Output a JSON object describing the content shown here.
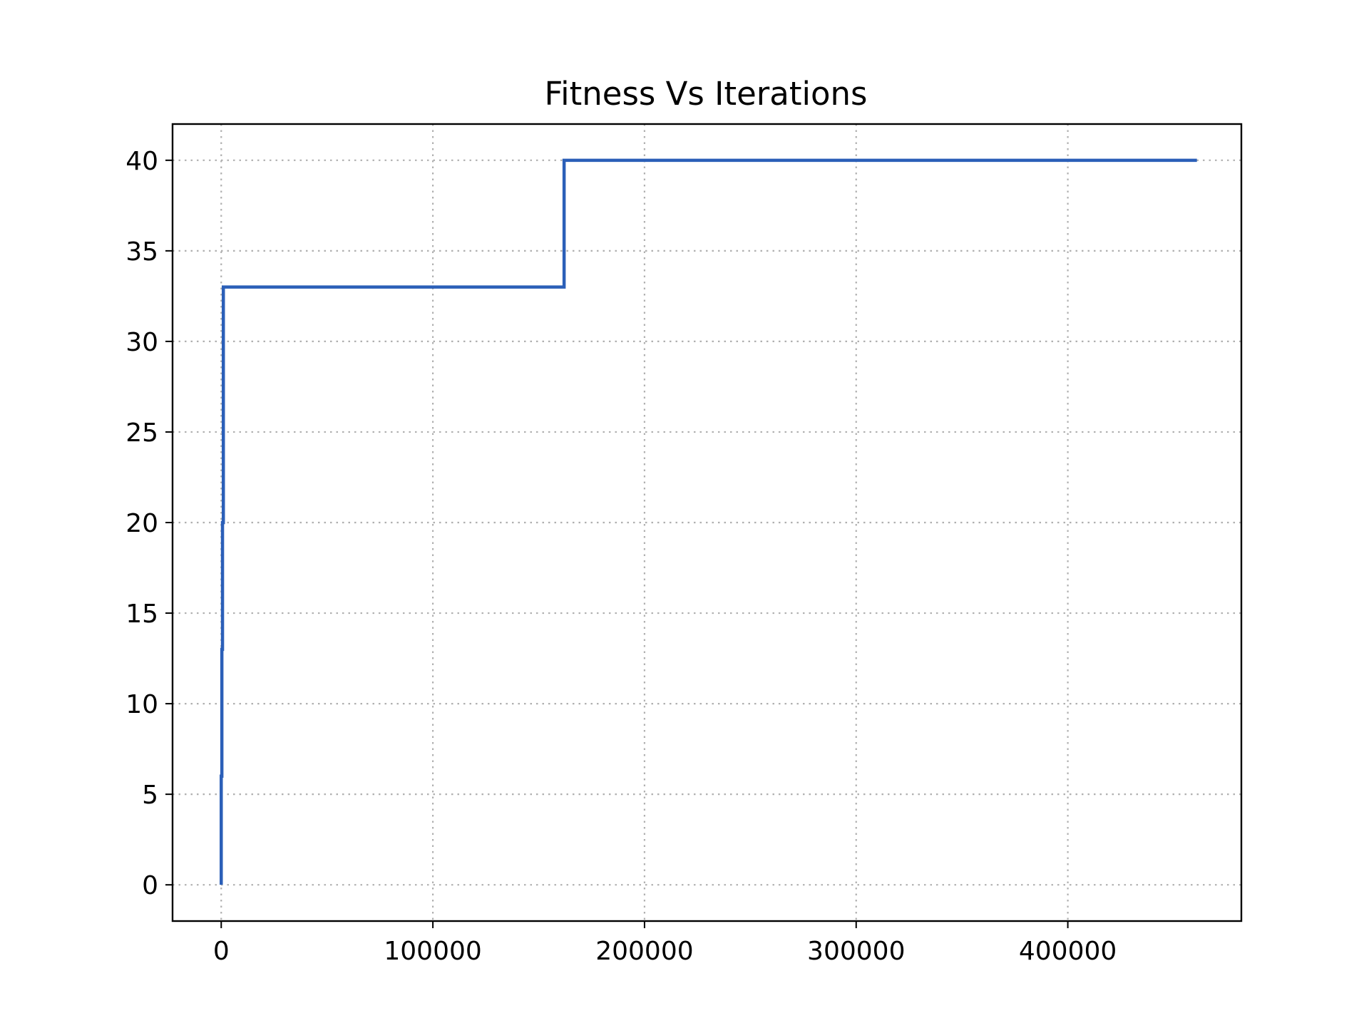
{
  "chart_data": {
    "type": "line",
    "title": "Fitness Vs Iterations",
    "xlabel": "",
    "ylabel": "",
    "xlim": [
      -23000,
      482000
    ],
    "ylim": [
      -2,
      42
    ],
    "x_ticks": [
      0,
      100000,
      200000,
      300000,
      400000
    ],
    "x_tick_labels": [
      "0",
      "100000",
      "200000",
      "300000",
      "400000"
    ],
    "y_ticks": [
      0,
      5,
      10,
      15,
      20,
      25,
      30,
      35,
      40
    ],
    "y_tick_labels": [
      "0",
      "5",
      "10",
      "15",
      "20",
      "25",
      "30",
      "35",
      "40"
    ],
    "grid": true,
    "legend": "none",
    "series": [
      {
        "color": "#2b5fb8",
        "x": [
          0,
          0,
          300,
          300,
          600,
          600,
          1000,
          1000,
          162000,
          162000,
          461000
        ],
        "y": [
          0,
          6,
          6,
          13,
          13,
          20,
          20,
          33,
          33,
          40,
          40
        ]
      }
    ]
  }
}
